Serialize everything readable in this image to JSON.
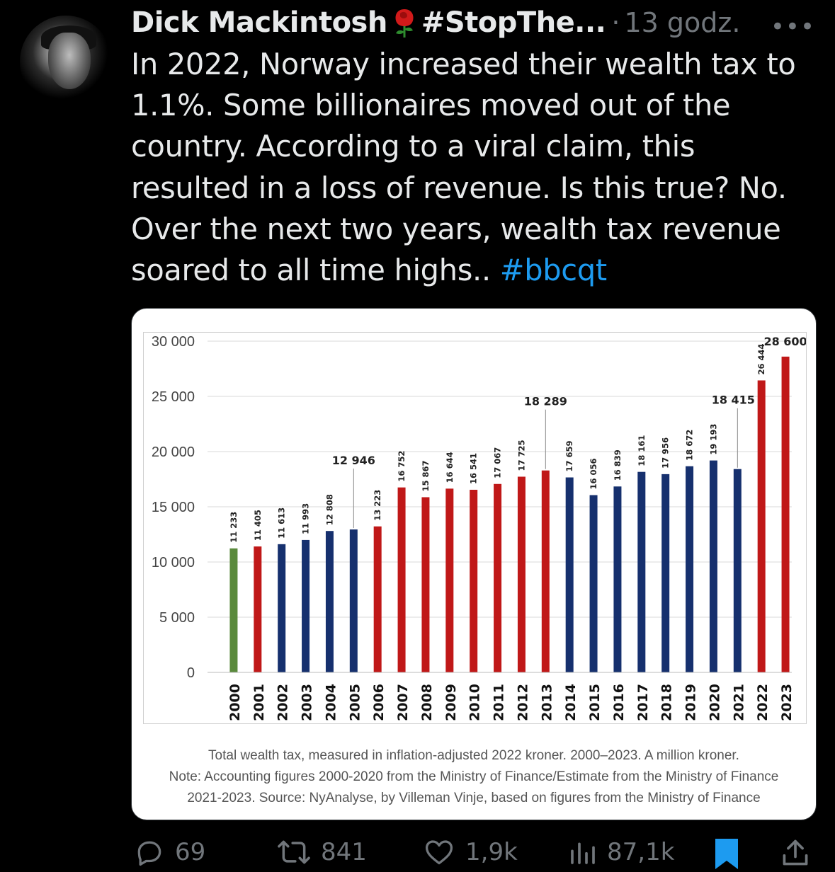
{
  "post": {
    "author_name": "Dick Mackintosh",
    "author_handle_suffix": "#StopThe...",
    "separator": "·",
    "time": "13 godz.",
    "more": "•••",
    "text": "In 2022, Norway increased their wealth tax to 1.1%. Some billionaires moved out of the country. According to a viral claim, this resulted in a loss of revenue. Is this true? No. Over the next two years, wealth tax revenue soared to all time highs..",
    "hashtag": "#bbcqt"
  },
  "media": {
    "caption_line1": "Total wealth tax, measured in inflation-adjusted 2022 kroner. 2000–2023. A million kroner.",
    "caption_line2": "Note: Accounting figures 2000-2020 from the Ministry of Finance/Estimate from the Ministry of Finance",
    "caption_line3": "2021-2023. Source: NyAnalyse, by Villeman Vinje, based on figures from the Ministry of Finance"
  },
  "chart_data": {
    "type": "bar",
    "categories": [
      "2000",
      "2001",
      "2002",
      "2003",
      "2004",
      "2005",
      "2006",
      "2007",
      "2008",
      "2009",
      "2010",
      "2011",
      "2012",
      "2013",
      "2014",
      "2015",
      "2016",
      "2017",
      "2018",
      "2019",
      "2020",
      "2021",
      "2022",
      "2023"
    ],
    "values": [
      11233,
      11405,
      11613,
      11993,
      12808,
      12946,
      13223,
      16752,
      15867,
      16644,
      16541,
      17067,
      17725,
      18289,
      17659,
      16056,
      16839,
      18161,
      17956,
      18672,
      19193,
      18415,
      26444,
      28600
    ],
    "value_labels": [
      "11 233",
      "11 405",
      "11 613",
      "11 993",
      "12 808",
      "12 946",
      "13 223",
      "16 752",
      "15 867",
      "16 644",
      "16 541",
      "17 067",
      "17 725",
      "18 289",
      "17 659",
      "16 056",
      "16 839",
      "18 161",
      "17 956",
      "18 672",
      "19 193",
      "18 415",
      "26 444",
      "28 600"
    ],
    "bar_colors": [
      "#5a8a3c",
      "#c01818",
      "#16306e",
      "#16306e",
      "#16306e",
      "#16306e",
      "#c01818",
      "#c01818",
      "#c01818",
      "#c01818",
      "#c01818",
      "#c01818",
      "#c01818",
      "#c01818",
      "#16306e",
      "#16306e",
      "#16306e",
      "#16306e",
      "#16306e",
      "#16306e",
      "#16306e",
      "#16306e",
      "#c01818",
      "#c01818"
    ],
    "callouts": [
      {
        "index": 5,
        "label": "12 946"
      },
      {
        "index": 13,
        "label": "18 289"
      },
      {
        "index": 21,
        "label": "18 415"
      },
      {
        "index": 23,
        "label": "28 600"
      }
    ],
    "yticks": [
      0,
      5000,
      10000,
      15000,
      20000,
      25000,
      30000
    ],
    "ytick_labels": [
      "0",
      "5 000",
      "10 000",
      "15 000",
      "20 000",
      "25 000",
      "30 000"
    ],
    "ylim": [
      0,
      30000
    ],
    "grid": true
  },
  "actions": {
    "replies": "69",
    "reposts": "841",
    "likes": "1,9k",
    "views": "87,1k"
  },
  "colors": {
    "accent": "#1d9bf0",
    "muted": "#71767b",
    "text": "#e7e9ea"
  }
}
